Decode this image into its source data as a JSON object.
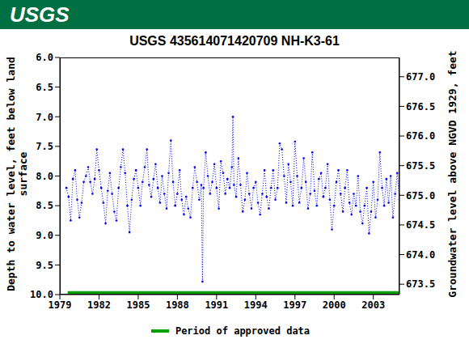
{
  "chart_data": {
    "type": "line",
    "logo_text": "USGS",
    "title": "USGS 435614071420709 NH-K3-61",
    "y_label": "Depth to water level, feet below land surface",
    "y2_label": "Groundwater level above NGVD 1929, feet",
    "xlim": [
      1979,
      2005
    ],
    "xticks": [
      1979,
      1982,
      1985,
      1988,
      1991,
      1994,
      1997,
      2000,
      2003
    ],
    "ylim": [
      6,
      10
    ],
    "yticks": [
      {
        "value": 6,
        "label": "6.0"
      },
      6.5,
      {
        "value": 7,
        "label": "7.0"
      },
      7.5,
      {
        "value": 8,
        "label": "8.0"
      },
      8.5,
      {
        "value": 9,
        "label": "9.0"
      },
      9.5,
      {
        "value": 10,
        "label": "10.0"
      }
    ],
    "y2lim": [
      673.325,
      677.325
    ],
    "y2ticks": [
      673.5,
      {
        "value": 674,
        "label": "674.0"
      },
      674.5,
      {
        "value": 675,
        "label": "675.0"
      },
      675.5,
      {
        "value": 676,
        "label": "676.0"
      },
      676.5,
      {
        "value": 677,
        "label": "677.0"
      }
    ],
    "series": [
      {
        "color": "#0000ff",
        "marker": "dot",
        "line_style": "dotted",
        "x": [
          1979.5,
          1979.67,
          1979.83,
          1980.0,
          1980.17,
          1980.33,
          1980.5,
          1980.67,
          1980.83,
          1981.0,
          1981.17,
          1981.33,
          1981.5,
          1981.67,
          1981.83,
          1982.0,
          1982.17,
          1982.33,
          1982.5,
          1982.67,
          1982.83,
          1983.0,
          1983.17,
          1983.33,
          1983.5,
          1983.67,
          1983.83,
          1984.0,
          1984.17,
          1984.33,
          1984.5,
          1984.67,
          1984.83,
          1985.0,
          1985.17,
          1985.33,
          1985.5,
          1985.67,
          1985.83,
          1986.0,
          1986.17,
          1986.33,
          1986.5,
          1986.67,
          1986.83,
          1987.0,
          1987.17,
          1987.33,
          1987.5,
          1987.67,
          1987.83,
          1988.0,
          1988.17,
          1988.33,
          1988.5,
          1988.67,
          1988.83,
          1989.0,
          1989.17,
          1989.33,
          1989.5,
          1989.67,
          1989.83,
          1989.92,
          1990.0,
          1990.17,
          1990.33,
          1990.5,
          1990.67,
          1990.83,
          1991.0,
          1991.17,
          1991.33,
          1991.5,
          1991.67,
          1991.83,
          1992.0,
          1992.17,
          1992.25,
          1992.33,
          1992.5,
          1992.67,
          1992.83,
          1993.0,
          1993.17,
          1993.33,
          1993.5,
          1993.67,
          1993.83,
          1994.0,
          1994.17,
          1994.33,
          1994.5,
          1994.67,
          1994.83,
          1995.0,
          1995.17,
          1995.33,
          1995.5,
          1995.67,
          1995.83,
          1996.0,
          1996.17,
          1996.33,
          1996.5,
          1996.67,
          1996.83,
          1997.0,
          1997.17,
          1997.33,
          1997.5,
          1997.67,
          1997.83,
          1998.0,
          1998.17,
          1998.33,
          1998.5,
          1998.67,
          1998.83,
          1999.0,
          1999.17,
          1999.33,
          1999.5,
          1999.67,
          1999.83,
          2000.0,
          2000.17,
          2000.33,
          2000.5,
          2000.67,
          2000.83,
          2001.0,
          2001.17,
          2001.33,
          2001.5,
          2001.67,
          2001.83,
          2002.0,
          2002.17,
          2002.33,
          2002.5,
          2002.67,
          2002.83,
          2003.0,
          2003.17,
          2003.33,
          2003.5,
          2003.67,
          2003.83,
          2004.0,
          2004.17,
          2004.33,
          2004.5,
          2004.67,
          2004.83,
          2005.0
        ],
        "values": [
          8.2,
          8.35,
          8.75,
          8.05,
          7.9,
          8.4,
          8.7,
          8.45,
          8.1,
          8.0,
          7.85,
          8.1,
          8.3,
          8.05,
          7.55,
          7.9,
          8.2,
          8.45,
          8.8,
          8.25,
          7.95,
          8.3,
          8.6,
          8.75,
          8.2,
          7.85,
          7.55,
          7.95,
          8.5,
          8.95,
          8.4,
          8.05,
          7.9,
          8.2,
          8.5,
          8.1,
          7.85,
          7.55,
          8.15,
          8.35,
          8.05,
          7.8,
          8.2,
          8.45,
          8.0,
          8.3,
          8.55,
          7.95,
          7.4,
          8.1,
          8.5,
          8.3,
          7.9,
          8.4,
          8.65,
          8.35,
          8.55,
          8.7,
          8.2,
          7.85,
          8.1,
          8.4,
          8.15,
          9.78,
          8.2,
          7.6,
          8.0,
          8.3,
          8.1,
          7.8,
          8.2,
          8.55,
          7.75,
          7.95,
          8.3,
          8.05,
          8.2,
          7.85,
          7.0,
          8.15,
          8.35,
          7.7,
          8.15,
          8.6,
          8.4,
          7.95,
          8.3,
          8.55,
          8.2,
          8.1,
          8.45,
          8.65,
          8.3,
          7.9,
          8.35,
          8.55,
          8.2,
          7.9,
          8.4,
          8.2,
          7.45,
          7.55,
          8.0,
          8.45,
          7.8,
          8.1,
          8.5,
          7.42,
          8.0,
          8.45,
          8.2,
          7.7,
          8.1,
          8.55,
          8.3,
          7.6,
          8.25,
          8.5,
          8.05,
          7.95,
          8.35,
          8.2,
          7.8,
          8.4,
          8.9,
          8.5,
          8.1,
          7.9,
          8.3,
          8.6,
          8.2,
          7.9,
          8.45,
          8.65,
          8.3,
          8.5,
          8.0,
          8.6,
          8.8,
          8.5,
          8.2,
          8.97,
          8.6,
          8.1,
          8.7,
          8.4,
          7.6,
          8.2,
          8.5,
          8.05,
          8.45,
          8.0,
          8.7,
          8.3,
          7.95,
          8.4
        ]
      },
      {
        "name": "Period of approved data",
        "color": "#00a000",
        "x": [
          1979.6,
          2005
        ],
        "values": [
          9.97,
          9.97
        ]
      }
    ]
  }
}
